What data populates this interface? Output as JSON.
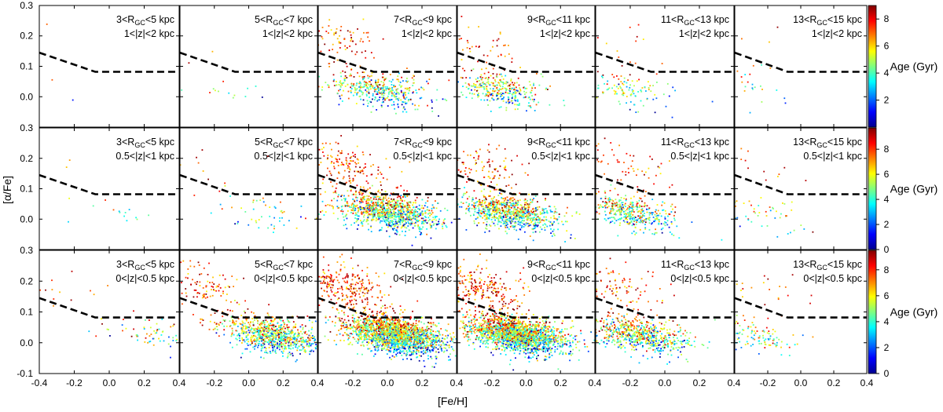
{
  "chart_data": {
    "type": "scatter",
    "description_units": "[Fe/H] on x, [alpha/Fe] on y, color = Age (Gyr)",
    "xlabel": "[Fe/H]",
    "ylabel": "[α/Fe]",
    "xlim": [
      -0.4,
      0.4
    ],
    "ylim": [
      -0.1,
      0.3
    ],
    "x_ticks": [
      "-0.4",
      "-0.2",
      "0.0",
      "0.2",
      "0.4"
    ],
    "y_ticks": [
      "-0.1",
      "0.0",
      "0.1",
      "0.2",
      "0.3"
    ],
    "colorbar": {
      "label": "Age (Gyr)",
      "rows": [
        {
          "vmin": 0,
          "vmax": 9,
          "ticks": [
            "2",
            "4",
            "6",
            "8"
          ]
        },
        {
          "vmin": 0,
          "vmax": 9.7,
          "ticks": [
            "0",
            "2",
            "4",
            "6",
            "8"
          ]
        },
        {
          "vmin": 0,
          "vmax": 9.5,
          "ticks": [
            "0",
            "2",
            "4",
            "6",
            "8"
          ]
        }
      ]
    },
    "columns": [
      {
        "r_min": 3,
        "r_max": 5,
        "r_unit": "kpc",
        "subscript": "GC"
      },
      {
        "r_min": 5,
        "r_max": 7,
        "r_unit": "kpc",
        "subscript": "GC"
      },
      {
        "r_min": 7,
        "r_max": 9,
        "r_unit": "kpc",
        "subscript": "GC"
      },
      {
        "r_min": 9,
        "r_max": 11,
        "r_unit": "kpc",
        "subscript": "GC"
      },
      {
        "r_min": 11,
        "r_max": 13,
        "r_unit": "kpc",
        "subscript": "GC"
      },
      {
        "r_min": 13,
        "r_max": 15,
        "r_unit": "kpc",
        "subscript": "GC"
      }
    ],
    "rows": [
      {
        "z_label": "1<|z|<2 kpc"
      },
      {
        "z_label": "0.5<|z|<1 kpc"
      },
      {
        "z_label": "0<|z|<0.5 kpc"
      }
    ],
    "dashed_line": [
      [
        -0.4,
        0.145
      ],
      [
        -0.08,
        0.082
      ],
      [
        0.4,
        0.082
      ]
    ],
    "panel_density": [
      [
        8,
        28,
        900,
        700,
        250,
        50
      ],
      [
        30,
        110,
        2200,
        1700,
        900,
        120
      ],
      [
        150,
        1800,
        4200,
        4000,
        1400,
        280
      ]
    ],
    "panel_feh_center": [
      [
        -0.2,
        -0.15,
        -0.05,
        -0.15,
        -0.25,
        -0.25
      ],
      [
        0.05,
        0.05,
        0.0,
        -0.1,
        -0.2,
        -0.25
      ],
      [
        0.25,
        0.15,
        0.05,
        -0.05,
        -0.15,
        -0.3
      ]
    ]
  },
  "panels_text": [
    [
      {
        "r": "3<R",
        "r2": "<5 kpc",
        "z": "1<|z|<2 kpc"
      },
      {
        "r": "5<R",
        "r2": "<7 kpc",
        "z": "1<|z|<2 kpc"
      },
      {
        "r": "7<R",
        "r2": "<9 kpc",
        "z": "1<|z|<2 kpc"
      },
      {
        "r": "9<R",
        "r2": "<11 kpc",
        "z": "1<|z|<2 kpc"
      },
      {
        "r": "11<R",
        "r2": "<13 kpc",
        "z": "1<|z|<2 kpc"
      },
      {
        "r": "13<R",
        "r2": "<15 kpc",
        "z": "1<|z|<2 kpc"
      }
    ],
    [
      {
        "r": "3<R",
        "r2": "<5 kpc",
        "z": "0.5<|z|<1 kpc"
      },
      {
        "r": "5<R",
        "r2": "<7 kpc",
        "z": "0.5<|z|<1 kpc"
      },
      {
        "r": "7<R",
        "r2": "<9 kpc",
        "z": "0.5<|z|<1 kpc"
      },
      {
        "r": "9<R",
        "r2": "<11 kpc",
        "z": "0.5<|z|<1 kpc"
      },
      {
        "r": "11<R",
        "r2": "<13 kpc",
        "z": "0.5<|z|<1 kpc"
      },
      {
        "r": "13<R",
        "r2": "<15 kpc",
        "z": "0.5<|z|<1 kpc"
      }
    ],
    [
      {
        "r": "3<R",
        "r2": "<5 kpc",
        "z": "0<|z|<0.5 kpc"
      },
      {
        "r": "5<R",
        "r2": "<7 kpc",
        "z": "0<|z|<0.5 kpc"
      },
      {
        "r": "7<R",
        "r2": "<9 kpc",
        "z": "0<|z|<0.5 kpc"
      },
      {
        "r": "9<R",
        "r2": "<11 kpc",
        "z": "0<|z|<0.5 kpc"
      },
      {
        "r": "11<R",
        "r2": "<13 kpc",
        "z": "0<|z|<0.5 kpc"
      },
      {
        "r": "13<R",
        "r2": "<15 kpc",
        "z": "0<|z|<0.5 kpc"
      }
    ]
  ],
  "subscript_text": "GC",
  "colors": {
    "jet": [
      "#00008f",
      "#0000ff",
      "#00ffff",
      "#7fff7f",
      "#ffff00",
      "#ff0000",
      "#800000"
    ]
  }
}
